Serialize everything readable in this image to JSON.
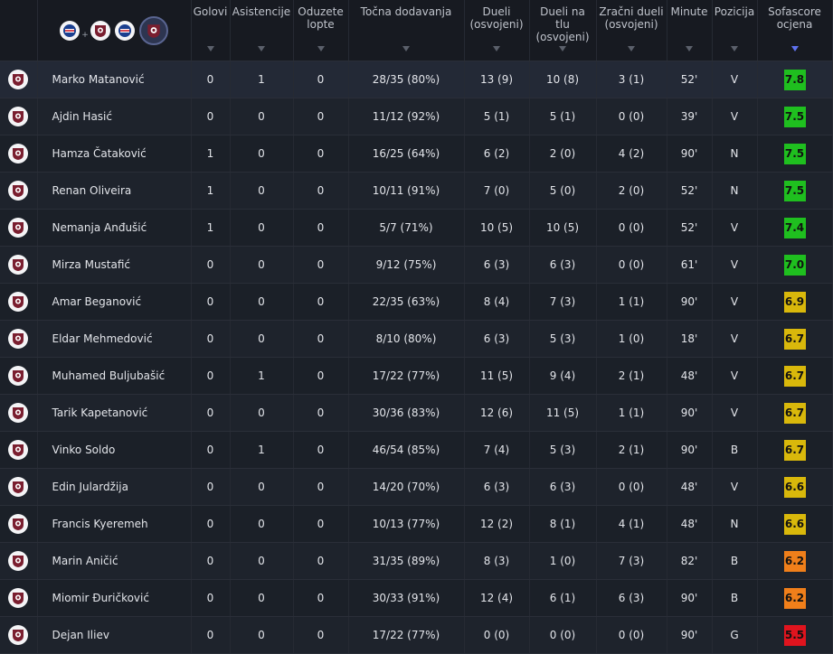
{
  "header": {
    "columns": [
      {
        "key": "goals",
        "label": "Golovi"
      },
      {
        "key": "assists",
        "label": "Asistencije"
      },
      {
        "key": "lost",
        "label": "Oduzete lopte"
      },
      {
        "key": "pass",
        "label": "Točna dodavanja"
      },
      {
        "key": "duels",
        "label": "Dueli (osvojeni)"
      },
      {
        "key": "ground",
        "label": "Dueli na tlu (osvojeni)"
      },
      {
        "key": "aerial",
        "label": "Zračni dueli (osvojeni)"
      },
      {
        "key": "minutes",
        "label": "Minute"
      },
      {
        "key": "position",
        "label": "Pozicija"
      },
      {
        "key": "rating",
        "label": "Sofascore ocjena"
      }
    ],
    "team_filter": {
      "plus": "+",
      "selected": "sarajevo"
    }
  },
  "colors": {
    "rating_green_dark": "#1fbf1f",
    "rating_green": "#3cc83c",
    "rating_yellow": "#d9b80b",
    "rating_orange": "#f07f1a",
    "rating_red": "#e0141e",
    "sort_active": "#5f72f0",
    "club_maroon": "#7a1e2f"
  },
  "icons": {
    "row_icon": "sarajevo-crest-icon"
  },
  "players": [
    {
      "name": "Marko Matanović",
      "goals": "0",
      "assists": "1",
      "lost": "0",
      "pass": "28/35 (80%)",
      "duels": "13 (9)",
      "ground": "10 (8)",
      "aerial": "3 (1)",
      "minutes": "52'",
      "position": "V",
      "rating": "7.8",
      "color": "#1fbf1f"
    },
    {
      "name": "Ajdin Hasić",
      "goals": "0",
      "assists": "0",
      "lost": "0",
      "pass": "11/12 (92%)",
      "duels": "5 (1)",
      "ground": "5 (1)",
      "aerial": "0 (0)",
      "minutes": "39'",
      "position": "V",
      "rating": "7.5",
      "color": "#1fbf1f"
    },
    {
      "name": "Hamza Čataković",
      "goals": "1",
      "assists": "0",
      "lost": "0",
      "pass": "16/25 (64%)",
      "duels": "6 (2)",
      "ground": "2 (0)",
      "aerial": "4 (2)",
      "minutes": "90'",
      "position": "N",
      "rating": "7.5",
      "color": "#1fbf1f"
    },
    {
      "name": "Renan Oliveira",
      "goals": "1",
      "assists": "0",
      "lost": "0",
      "pass": "10/11 (91%)",
      "duels": "7 (0)",
      "ground": "5 (0)",
      "aerial": "2 (0)",
      "minutes": "52'",
      "position": "N",
      "rating": "7.5",
      "color": "#1fbf1f"
    },
    {
      "name": "Nemanja Anđušić",
      "goals": "1",
      "assists": "0",
      "lost": "0",
      "pass": "5/7 (71%)",
      "duels": "10 (5)",
      "ground": "10 (5)",
      "aerial": "0 (0)",
      "minutes": "52'",
      "position": "V",
      "rating": "7.4",
      "color": "#1fbf1f"
    },
    {
      "name": "Mirza Mustafić",
      "goals": "0",
      "assists": "0",
      "lost": "0",
      "pass": "9/12 (75%)",
      "duels": "6 (3)",
      "ground": "6 (3)",
      "aerial": "0 (0)",
      "minutes": "61'",
      "position": "V",
      "rating": "7.0",
      "color": "#1fbf1f"
    },
    {
      "name": "Amar Beganović",
      "goals": "0",
      "assists": "0",
      "lost": "0",
      "pass": "22/35 (63%)",
      "duels": "8 (4)",
      "ground": "7 (3)",
      "aerial": "1 (1)",
      "minutes": "90'",
      "position": "V",
      "rating": "6.9",
      "color": "#d9b80b"
    },
    {
      "name": "Eldar Mehmedović",
      "goals": "0",
      "assists": "0",
      "lost": "0",
      "pass": "8/10 (80%)",
      "duels": "6 (3)",
      "ground": "5 (3)",
      "aerial": "1 (0)",
      "minutes": "18'",
      "position": "V",
      "rating": "6.7",
      "color": "#d9b80b"
    },
    {
      "name": "Muhamed Buljubašić",
      "goals": "0",
      "assists": "1",
      "lost": "0",
      "pass": "17/22 (77%)",
      "duels": "11 (5)",
      "ground": "9 (4)",
      "aerial": "2 (1)",
      "minutes": "48'",
      "position": "V",
      "rating": "6.7",
      "color": "#d9b80b"
    },
    {
      "name": "Tarik Kapetanović",
      "goals": "0",
      "assists": "0",
      "lost": "0",
      "pass": "30/36 (83%)",
      "duels": "12 (6)",
      "ground": "11 (5)",
      "aerial": "1 (1)",
      "minutes": "90'",
      "position": "V",
      "rating": "6.7",
      "color": "#d9b80b"
    },
    {
      "name": "Vinko Soldo",
      "goals": "0",
      "assists": "1",
      "lost": "0",
      "pass": "46/54 (85%)",
      "duels": "7 (4)",
      "ground": "5 (3)",
      "aerial": "2 (1)",
      "minutes": "90'",
      "position": "B",
      "rating": "6.7",
      "color": "#d9b80b"
    },
    {
      "name": "Edin Julardžija",
      "goals": "0",
      "assists": "0",
      "lost": "0",
      "pass": "14/20 (70%)",
      "duels": "6 (3)",
      "ground": "6 (3)",
      "aerial": "0 (0)",
      "minutes": "48'",
      "position": "V",
      "rating": "6.6",
      "color": "#d9b80b"
    },
    {
      "name": "Francis Kyeremeh",
      "goals": "0",
      "assists": "0",
      "lost": "0",
      "pass": "10/13 (77%)",
      "duels": "12 (2)",
      "ground": "8 (1)",
      "aerial": "4 (1)",
      "minutes": "48'",
      "position": "N",
      "rating": "6.6",
      "color": "#d9b80b"
    },
    {
      "name": "Marin Aničić",
      "goals": "0",
      "assists": "0",
      "lost": "0",
      "pass": "31/35 (89%)",
      "duels": "8 (3)",
      "ground": "1 (0)",
      "aerial": "7 (3)",
      "minutes": "82'",
      "position": "B",
      "rating": "6.2",
      "color": "#f07f1a"
    },
    {
      "name": "Miomir Đuričković",
      "goals": "0",
      "assists": "0",
      "lost": "0",
      "pass": "30/33 (91%)",
      "duels": "12 (4)",
      "ground": "6 (1)",
      "aerial": "6 (3)",
      "minutes": "90'",
      "position": "B",
      "rating": "6.2",
      "color": "#f07f1a"
    },
    {
      "name": "Dejan Iliev",
      "goals": "0",
      "assists": "0",
      "lost": "0",
      "pass": "17/22 (77%)",
      "duels": "0 (0)",
      "ground": "0 (0)",
      "aerial": "0 (0)",
      "minutes": "90'",
      "position": "G",
      "rating": "5.5",
      "color": "#e0141e"
    }
  ]
}
